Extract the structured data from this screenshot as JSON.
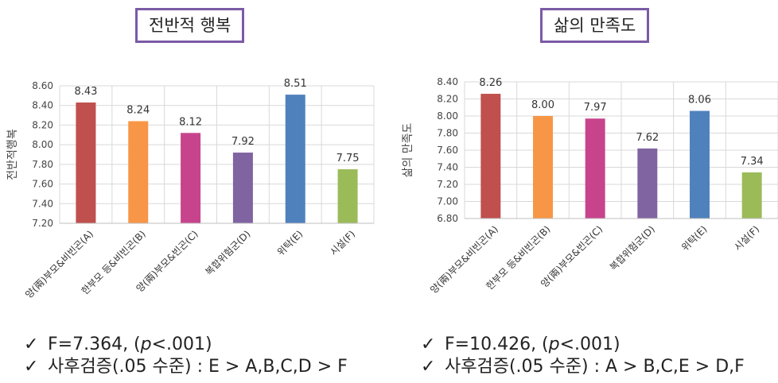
{
  "panels": {
    "left": {
      "title": "전반적 행복",
      "stats": {
        "check": "✓",
        "line1_pre": "F=7.364, (",
        "line1_p": "p",
        "line1_post": "<.001)",
        "line2": "사후검증(.05 수준) : E > A,B,C,D > F"
      }
    },
    "right": {
      "title": "삶의 만족도",
      "stats": {
        "check": "✓",
        "line1_pre": "F=10.426, (",
        "line1_p": "p",
        "line1_post": "<.001)",
        "line2": "사후검증(.05 수준) : A > B,C,E > D,F"
      }
    }
  },
  "chart_data": [
    {
      "type": "bar",
      "title": "전반적 행복",
      "ylabel": "전반적행복",
      "xlabel": "",
      "categories": [
        "양(兩)부모&비빈곤(A)",
        "한부모 등&비빈곤(B)",
        "양(兩)부모&빈곤(C)",
        "복합위험군(D)",
        "위탁(E)",
        "시설(F)"
      ],
      "values": [
        8.43,
        8.24,
        8.12,
        7.92,
        8.51,
        7.75
      ],
      "value_labels": [
        "8.43",
        "8.24",
        "8.12",
        "7.92",
        "8.51",
        "7.75"
      ],
      "colors": [
        "#c0504d",
        "#f79646",
        "#c7448c",
        "#8064a2",
        "#4f81bd",
        "#9bbb59"
      ],
      "ylim": [
        7.2,
        8.6
      ],
      "yticks": [
        "7.20",
        "7.40",
        "7.60",
        "7.80",
        "8.00",
        "8.20",
        "8.40",
        "8.60"
      ],
      "grid": true
    },
    {
      "type": "bar",
      "title": "삶의 만족도",
      "ylabel": "삶의 만족도",
      "xlabel": "",
      "categories": [
        "양(兩)부모&비빈곤(A)",
        "한부모 등&비빈곤(B)",
        "양(兩)부모&빈곤(C)",
        "복합위험군(D)",
        "위탁(E)",
        "시설(F)"
      ],
      "values": [
        8.26,
        8.0,
        7.97,
        7.62,
        8.06,
        7.34
      ],
      "value_labels": [
        "8.26",
        "8.00",
        "7.97",
        "7.62",
        "8.06",
        "7.34"
      ],
      "colors": [
        "#c0504d",
        "#f79646",
        "#c7448c",
        "#8064a2",
        "#4f81bd",
        "#9bbb59"
      ],
      "ylim": [
        6.8,
        8.4
      ],
      "yticks": [
        "6.80",
        "7.00",
        "7.20",
        "7.40",
        "7.60",
        "7.80",
        "8.00",
        "8.20",
        "8.40"
      ],
      "grid": true
    }
  ]
}
